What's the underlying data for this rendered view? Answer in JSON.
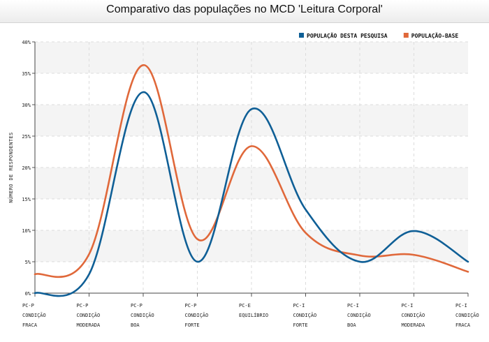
{
  "chart_data": {
    "type": "line",
    "title": "Comparativo das populações no MCD 'Leitura Corporal'",
    "xlabel": "",
    "ylabel": "NÚMERO DE RESPONDENTES",
    "ylim": [
      0,
      40
    ],
    "yticks": [
      "0%",
      "5%",
      "10%",
      "15%",
      "20%",
      "25%",
      "30%",
      "35%",
      "40%"
    ],
    "grid": true,
    "legend_position": "top-right",
    "categories": [
      [
        "PC-P",
        "CONDIÇÃO",
        "FRACA"
      ],
      [
        "PC-P",
        "CONDIÇÃO",
        "MODERADA"
      ],
      [
        "PC-P",
        "CONDIÇÃO",
        "BOA"
      ],
      [
        "PC-P",
        "CONDIÇÃO",
        "FORTE"
      ],
      [
        "PC-E",
        "EQUILÍBRIO"
      ],
      [
        "PC-I",
        "CONDIÇÃO",
        "FORTE"
      ],
      [
        "PC-I",
        "CONDIÇÃO",
        "BOA"
      ],
      [
        "PC-I",
        "CONDIÇÃO",
        "MODERADA"
      ],
      [
        "PC-I",
        "CONDIÇÃO",
        "FRACA"
      ]
    ],
    "series": [
      {
        "name": "POPULAÇÃO DESTA PESQUISA",
        "color": "#0f5f96",
        "values": [
          0,
          3,
          32,
          5,
          29.3,
          13.3,
          5,
          9.9,
          5
        ]
      },
      {
        "name": "POPULAÇÃO-BASE",
        "color": "#e0683a",
        "values": [
          3,
          6.2,
          36.3,
          8.6,
          23.4,
          9.6,
          6,
          6.1,
          3.4
        ]
      }
    ]
  }
}
